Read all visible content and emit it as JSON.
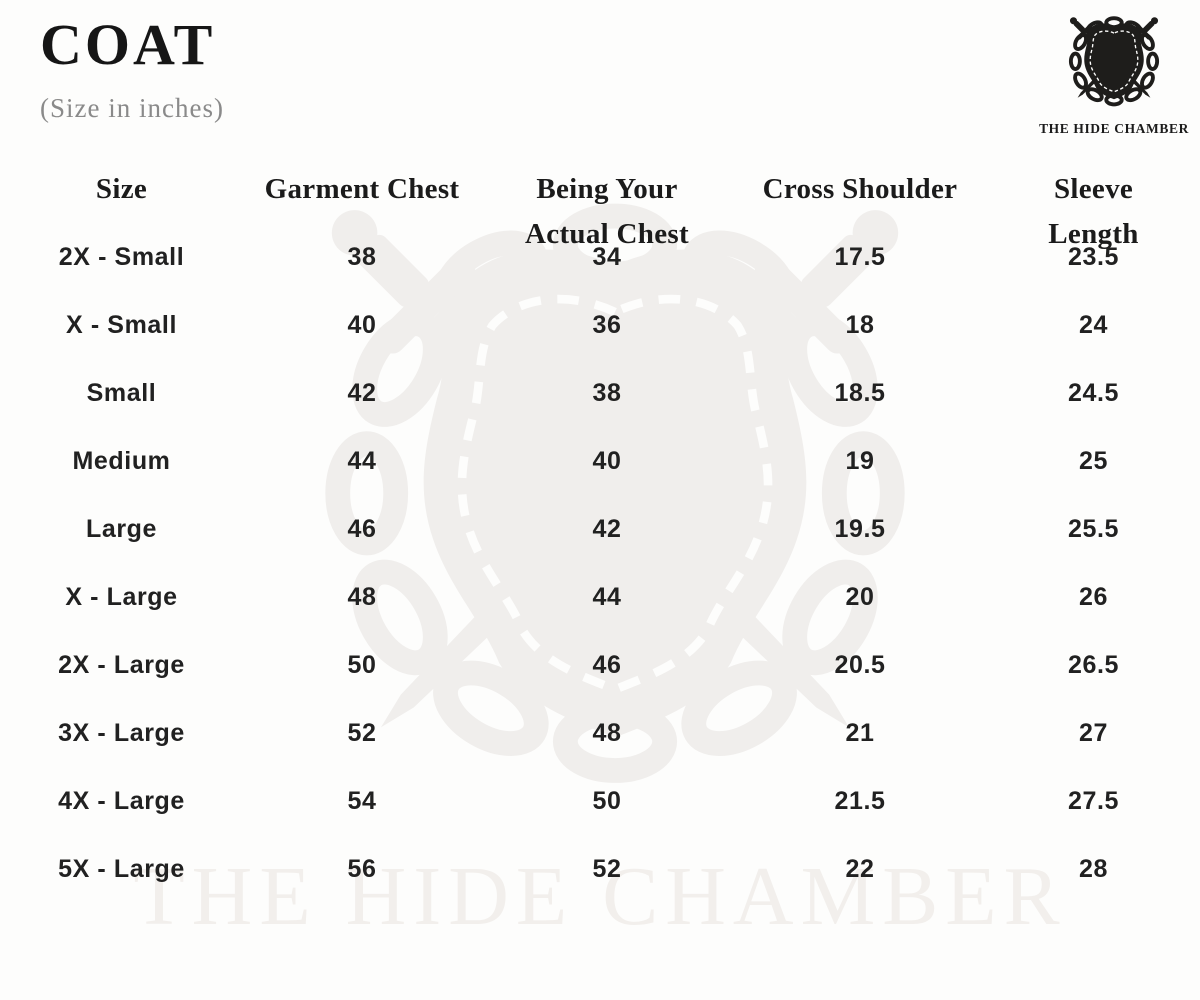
{
  "header": {
    "title": "COAT",
    "subtitle": "(Size in inches)"
  },
  "brand": {
    "name": "THE HIDE CHAMBER",
    "emblem_icon": "shield-hide-with-stitching-chain-ring-and-crossed-swords",
    "watermark_text": "THE HIDE CHAMBER"
  },
  "table": {
    "columns": [
      {
        "label": "Size",
        "lines": [
          "Size"
        ]
      },
      {
        "label": "Garment Chest",
        "lines": [
          "Garment Chest"
        ]
      },
      {
        "label": "Being Your Actual Chest",
        "lines": [
          "Being Your",
          "Actual Chest"
        ]
      },
      {
        "label": "Cross Shoulder",
        "lines": [
          "Cross Shoulder"
        ]
      },
      {
        "label": "Sleeve Length",
        "lines": [
          "Sleeve",
          "Length"
        ]
      }
    ],
    "rows": [
      [
        "2X - Small",
        "38",
        "34",
        "17.5",
        "23.5"
      ],
      [
        "X - Small",
        "40",
        "36",
        "18",
        "24"
      ],
      [
        "Small",
        "42",
        "38",
        "18.5",
        "24.5"
      ],
      [
        "Medium",
        "44",
        "40",
        "19",
        "25"
      ],
      [
        "Large",
        "46",
        "42",
        "19.5",
        "25.5"
      ],
      [
        "X - Large",
        "48",
        "44",
        "20",
        "26"
      ],
      [
        "2X - Large",
        "50",
        "46",
        "20.5",
        "26.5"
      ],
      [
        "3X - Large",
        "52",
        "48",
        "21",
        "27"
      ],
      [
        "4X - Large",
        "54",
        "50",
        "21.5",
        "27.5"
      ],
      [
        "5X - Large",
        "56",
        "52",
        "22",
        "28"
      ]
    ]
  },
  "colors": {
    "background": "#fdfdfc",
    "text_primary": "#1c1c1c",
    "subtitle_gray": "#8a8a8a",
    "logo_dark": "#1e1d1b",
    "watermark_gray": "#f0eeec",
    "stitch_white": "#fdfdfc"
  }
}
